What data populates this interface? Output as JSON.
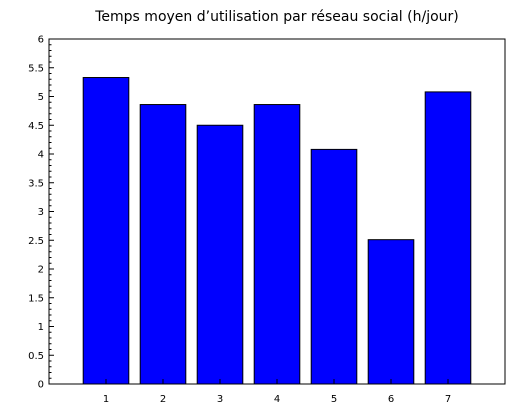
{
  "chart_data": {
    "type": "bar",
    "title": "Temps moyen d’utilisation par réseau social (h/jour)",
    "xlabel": "",
    "ylabel": "",
    "categories": [
      "1",
      "2",
      "3",
      "4",
      "5",
      "6",
      "7"
    ],
    "values": [
      5.33,
      4.86,
      4.5,
      4.86,
      4.08,
      2.51,
      5.08
    ],
    "ylim": [
      0,
      6
    ],
    "xlim": [
      0,
      8
    ],
    "yticks": [
      "0",
      "0.5",
      "1",
      "1.5",
      "2",
      "2.5",
      "3",
      "3.5",
      "4",
      "4.5",
      "5",
      "5.5",
      "6"
    ],
    "grid": false,
    "legend": "none",
    "colors": {
      "bar_fill": "#0000ff",
      "bar_edge": "#000000",
      "axis": "#000000"
    }
  }
}
